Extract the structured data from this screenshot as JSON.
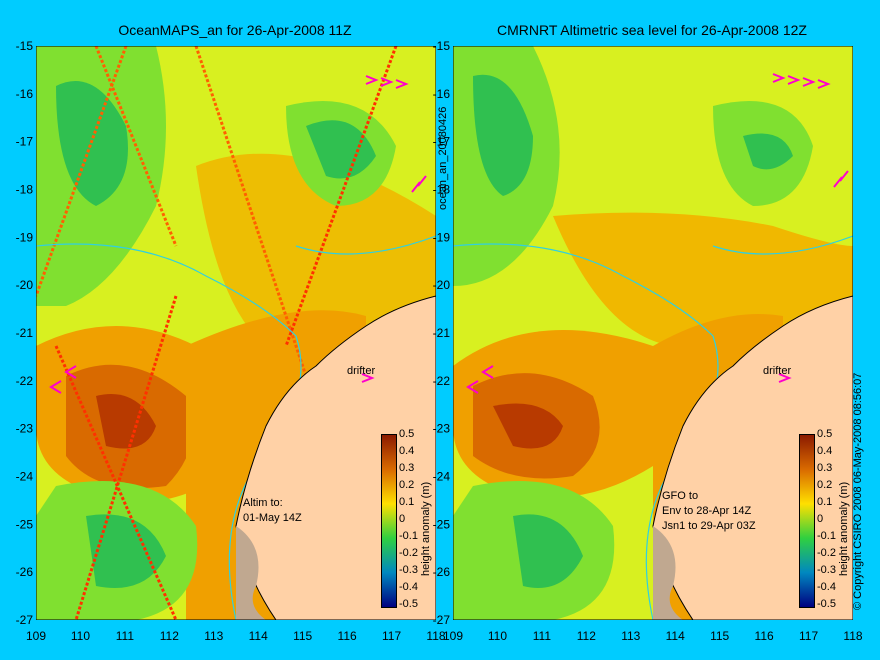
{
  "left_panel": {
    "title": "OceanMAPS_an for 26-Apr-2008 11Z",
    "note": "Altim to:\n01-May 14Z",
    "drifter_label": "drifter"
  },
  "right_panel": {
    "title": "CMRNRT Altimetric sea level  for 26-Apr-2008 12Z",
    "note": "GFO to\nEnv to 28-Apr 14Z\nJsn1 to 29-Apr 03Z",
    "drifter_label": "drifter"
  },
  "side_label": "ocean_an_20080426",
  "copyright": "© Copyright CSIRO 2008   06-May-2008 08:56:07",
  "axes": {
    "x_ticks": [
      "109",
      "110",
      "111",
      "112",
      "113",
      "114",
      "115",
      "116",
      "117",
      "118"
    ],
    "y_ticks": [
      "-15",
      "-16",
      "-17",
      "-18",
      "-19",
      "-20",
      "-21",
      "-22",
      "-23",
      "-24",
      "-25",
      "-26",
      "-27"
    ],
    "xlim": [
      109,
      118
    ],
    "ylim": [
      -27,
      -15
    ]
  },
  "colorbar": {
    "label": "height anomaly (m)",
    "ticks": [
      "0.5",
      "0.4",
      "0.3",
      "0.2",
      "0.1",
      "0",
      "-0.1",
      "-0.2",
      "-0.3",
      "-0.4",
      "-0.5"
    ],
    "colors": [
      "#8b1a00",
      "#b83a00",
      "#d96a00",
      "#f0a000",
      "#ffe000",
      "#b8f000",
      "#30d040",
      "#00b060",
      "#0088c0",
      "#0040c0",
      "#000080"
    ]
  },
  "colors": {
    "background": "#00ccff",
    "land": "#ffd1a6",
    "sea_base": "#d8f020",
    "isobath": "#30d0e0",
    "drifter": "#ff00cc"
  }
}
